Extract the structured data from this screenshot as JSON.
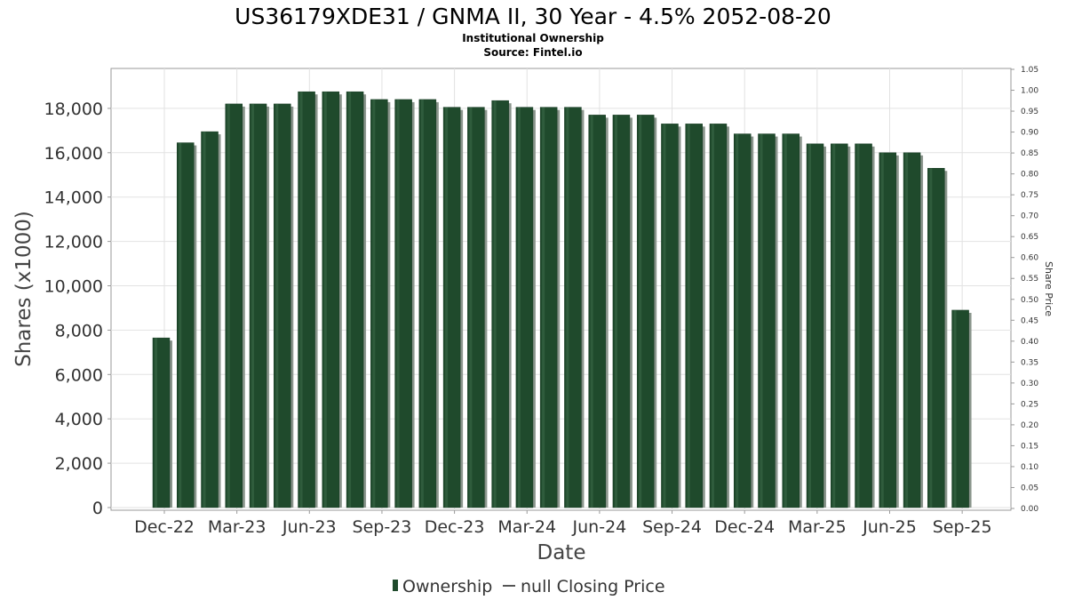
{
  "chart_data": {
    "type": "bar",
    "title": "US36179XDE31 / GNMA II, 30 Year - 4.5% 2052-08-20",
    "subtitle_lines": [
      "Institutional Ownership",
      "Source: Fintel.io"
    ],
    "xlabel": "Date",
    "ylabel": "Shares (x1000)",
    "y2label": "Share Price",
    "ylim": [
      0,
      19800
    ],
    "y2lim": [
      0,
      1.05
    ],
    "yticks": [
      "0",
      "2,000",
      "4,000",
      "6,000",
      "8,000",
      "10,000",
      "12,000",
      "14,000",
      "16,000",
      "18,000"
    ],
    "y2ticks": [
      "0.00",
      "0.05",
      "0.10",
      "0.15",
      "0.20",
      "0.25",
      "0.30",
      "0.35",
      "0.40",
      "0.45",
      "0.50",
      "0.55",
      "0.60",
      "0.65",
      "0.70",
      "0.75",
      "0.80",
      "0.85",
      "0.90",
      "0.95",
      "1.00",
      "1.05"
    ],
    "xticks": [
      "Dec-22",
      "Mar-23",
      "Jun-23",
      "Sep-23",
      "Dec-23",
      "Mar-24",
      "Jun-24",
      "Sep-24",
      "Dec-24",
      "Mar-25",
      "Jun-25",
      "Sep-25"
    ],
    "series": [
      {
        "name": "Ownership",
        "color": "#1f4a2c",
        "values": [
          7650,
          16450,
          16950,
          18200,
          18200,
          18200,
          18750,
          18750,
          18750,
          18400,
          18400,
          18400,
          18050,
          18050,
          18350,
          18050,
          18050,
          18050,
          17700,
          17700,
          17700,
          17300,
          17300,
          17300,
          16850,
          16850,
          16850,
          16400,
          16400,
          16400,
          16000,
          16000,
          15300,
          8900
        ]
      }
    ],
    "legend": {
      "position": "bottom",
      "entries": [
        "Ownership",
        "null Closing Price"
      ]
    },
    "grid": true
  }
}
